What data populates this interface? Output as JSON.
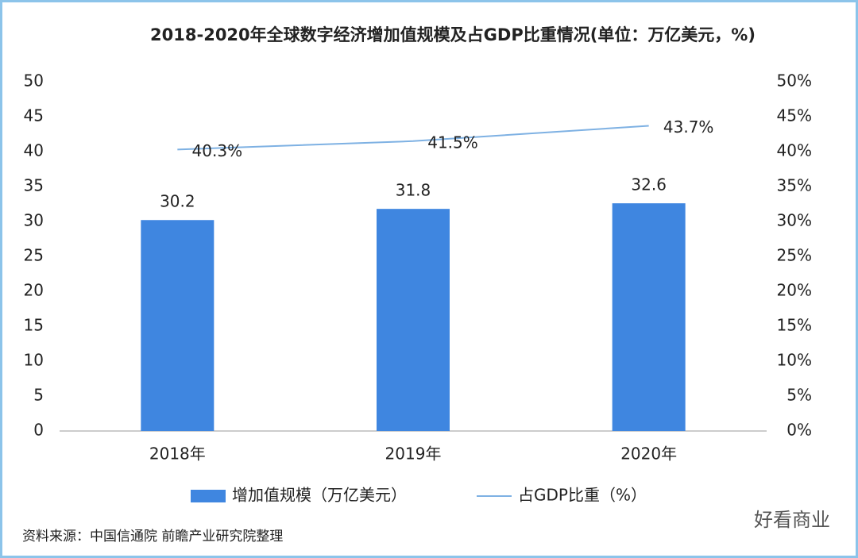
{
  "chart_data": {
    "type": "bar-line",
    "title": "2018-2020年全球数字经济增加值规模及占GDP比重情况(单位：万亿美元，%)",
    "categories": [
      "2018年",
      "2019年",
      "2020年"
    ],
    "series": [
      {
        "name": "增加值规模（万亿美元）",
        "type": "bar",
        "color": "#3f86e0",
        "values": [
          30.2,
          31.8,
          32.6
        ]
      },
      {
        "name": "占GDP比重（%）",
        "type": "line",
        "axis": "y2",
        "color": "#7eb1e3",
        "values": [
          40.3,
          41.5,
          43.7
        ],
        "value_labels": [
          "40.3%",
          "41.5%",
          "43.7%"
        ]
      }
    ],
    "ylim": [
      0,
      50
    ],
    "yticks": [
      0,
      5,
      10,
      15,
      20,
      25,
      30,
      35,
      40,
      45,
      50
    ],
    "y2lim": [
      0,
      50
    ],
    "y2ticks": [
      {
        "value": 0,
        "label": "0%"
      },
      {
        "value": 5,
        "label": "5%"
      },
      {
        "value": 10,
        "label": "10%"
      },
      {
        "value": 15,
        "label": "15%"
      },
      {
        "value": 20,
        "label": "20%"
      },
      {
        "value": 25,
        "label": "25%"
      },
      {
        "value": 30,
        "label": "30%"
      },
      {
        "value": 35,
        "label": "35%"
      },
      {
        "value": 40,
        "label": "40%"
      },
      {
        "value": 45,
        "label": "45%"
      },
      {
        "value": 50,
        "label": "50%"
      }
    ],
    "grid": false,
    "legend": "bottom",
    "source": "资料来源：中国信通院 前瞻产业研究院整理",
    "watermark": "好看商业"
  }
}
